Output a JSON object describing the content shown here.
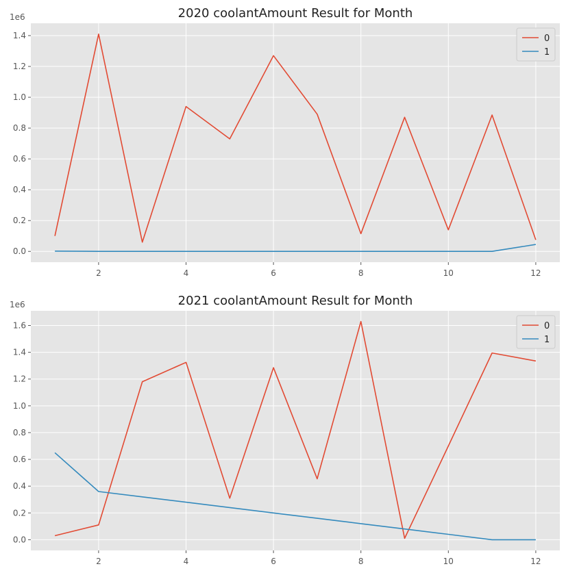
{
  "chart_data": [
    {
      "type": "line",
      "title": "2020 coolantAmount Result for Month",
      "xlabel": "",
      "ylabel": "",
      "y_scale_label": "1e6",
      "x": [
        1,
        2,
        3,
        4,
        5,
        6,
        7,
        8,
        9,
        10,
        11,
        12
      ],
      "xlim": [
        0.45,
        12.55
      ],
      "ylim": [
        -0.07,
        1.48
      ],
      "x_ticks": [
        2,
        4,
        6,
        8,
        10,
        12
      ],
      "x_tick_labels": [
        "2",
        "4",
        "6",
        "8",
        "10",
        "12"
      ],
      "y_ticks": [
        0.0,
        0.2,
        0.4,
        0.6,
        0.8,
        1.0,
        1.2,
        1.4
      ],
      "y_tick_labels": [
        "0.0",
        "0.2",
        "0.4",
        "0.6",
        "0.8",
        "1.0",
        "1.2",
        "1.4"
      ],
      "grid": true,
      "legend_position": "top-right",
      "series": [
        {
          "name": "0",
          "color": "#E24A33",
          "values": [
            0.1,
            1.41,
            0.06,
            0.94,
            0.73,
            1.27,
            0.89,
            0.115,
            0.87,
            0.14,
            0.885,
            0.075
          ]
        },
        {
          "name": "1",
          "color": "#348ABD",
          "values": [
            0.002,
            0.0,
            0.0,
            0.0,
            0.0,
            0.0,
            0.0,
            0.0,
            0.0,
            0.0,
            0.0,
            0.045
          ]
        }
      ]
    },
    {
      "type": "line",
      "title": "2021 coolantAmount Result for Month",
      "xlabel": "",
      "ylabel": "",
      "y_scale_label": "1e6",
      "x": [
        1,
        2,
        3,
        4,
        5,
        6,
        7,
        8,
        9,
        10,
        11,
        12
      ],
      "xlim": [
        0.45,
        12.55
      ],
      "ylim": [
        -0.08,
        1.71
      ],
      "x_ticks": [
        2,
        4,
        6,
        8,
        10,
        12
      ],
      "x_tick_labels": [
        "2",
        "4",
        "6",
        "8",
        "10",
        "12"
      ],
      "y_ticks": [
        0.0,
        0.2,
        0.4,
        0.6,
        0.8,
        1.0,
        1.2,
        1.4,
        1.6
      ],
      "y_tick_labels": [
        "0.0",
        "0.2",
        "0.4",
        "0.6",
        "0.8",
        "1.0",
        "1.2",
        "1.4",
        "1.6"
      ],
      "grid": true,
      "legend_position": "top-right",
      "series": [
        {
          "name": "0",
          "color": "#E24A33",
          "values": [
            0.03,
            0.11,
            1.18,
            1.325,
            0.31,
            1.285,
            0.455,
            1.63,
            0.01,
            0.7,
            1.395,
            1.335
          ]
        },
        {
          "name": "1",
          "color": "#348ABD",
          "values": [
            0.65,
            0.36,
            0.32,
            0.28,
            0.24,
            0.2,
            0.16,
            0.12,
            0.08,
            0.04,
            0.0,
            0.0
          ]
        }
      ]
    }
  ]
}
